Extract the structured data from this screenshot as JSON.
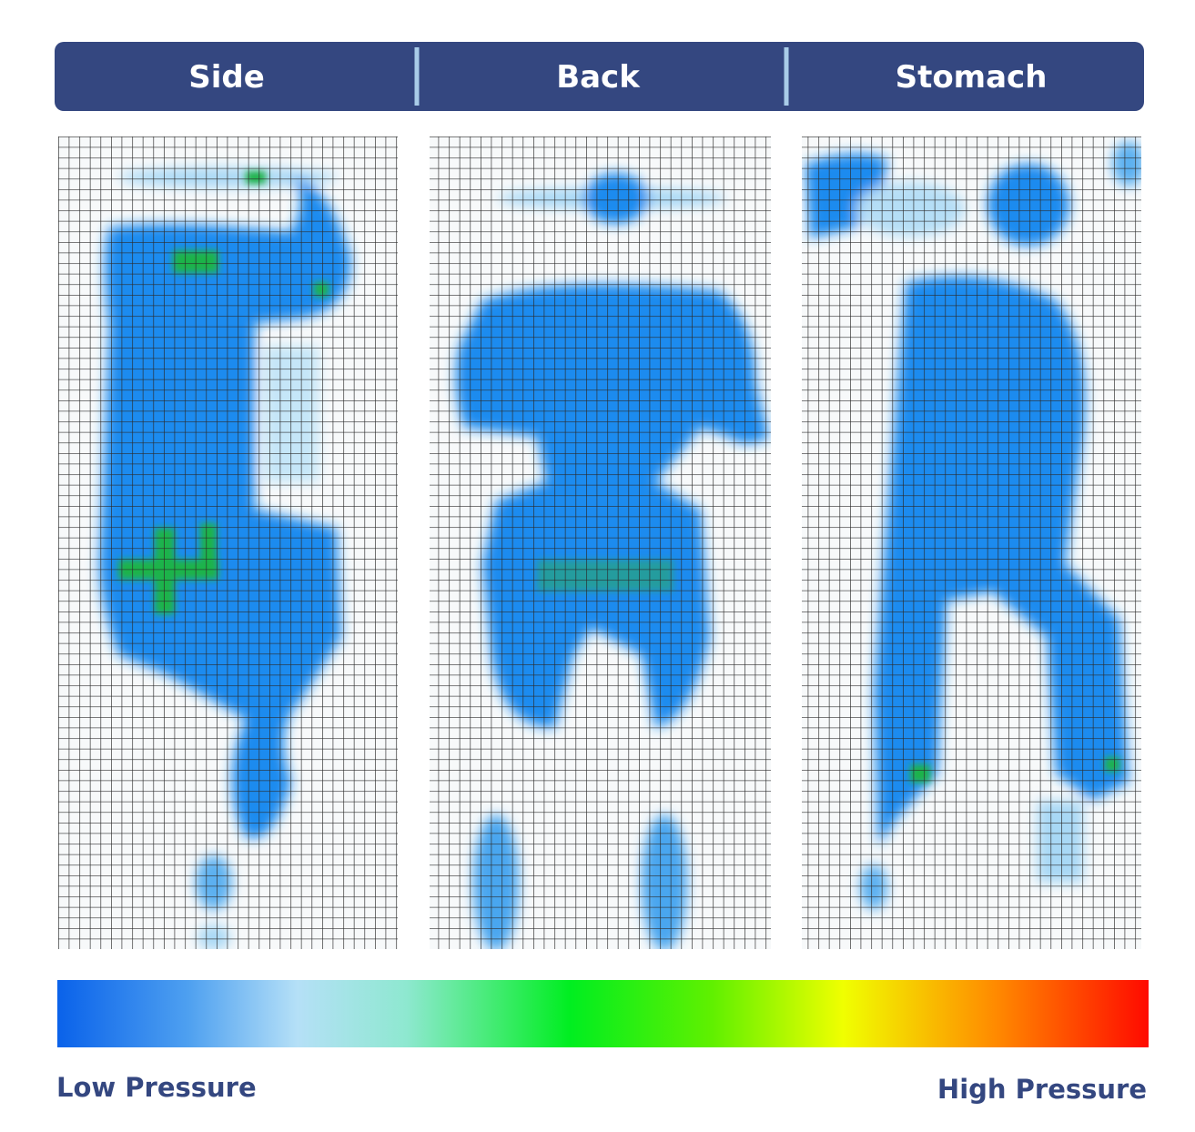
{
  "header": {
    "tabs": [
      "Side",
      "Back",
      "Stomach"
    ]
  },
  "legend": {
    "low_label": "Low Pressure",
    "high_label": "High Pressure"
  }
}
